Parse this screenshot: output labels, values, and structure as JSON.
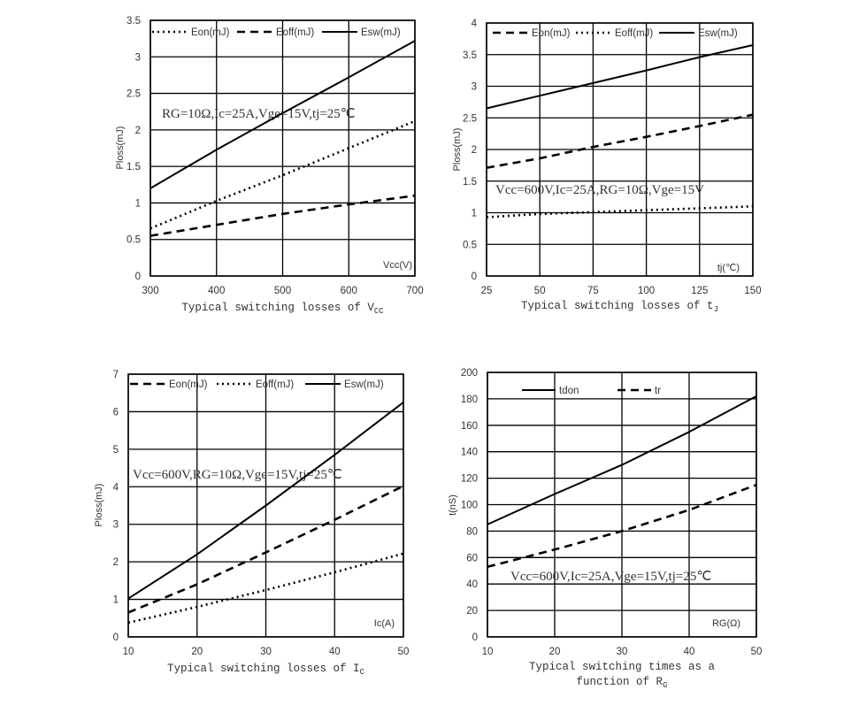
{
  "colors": {
    "line": "#000000",
    "grid": "#000000",
    "text": "#333333"
  },
  "chart_data": [
    {
      "type": "line",
      "caption": "Typical switching losses of V",
      "caption_sub": "CC",
      "xlabel": "Vcc(V)",
      "ylabel": "Ploss(mJ)",
      "xlim": [
        300,
        700
      ],
      "ylim": [
        0,
        3.5
      ],
      "xticks": [
        300,
        400,
        500,
        600,
        700
      ],
      "yticks": [
        0,
        0.5,
        1,
        1.5,
        2,
        2.5,
        3,
        3.5
      ],
      "grid": true,
      "legend": "top",
      "annotation": "RG=10Ω,Ic=25A,Vge=15V,tj=25℃",
      "x": [
        300,
        400,
        500,
        600,
        700
      ],
      "series": [
        {
          "name": "Eon(mJ)",
          "style": "dotted",
          "values": [
            0.65,
            1.03,
            1.38,
            1.75,
            2.12
          ]
        },
        {
          "name": "Eoff(mJ)",
          "style": "dashed",
          "values": [
            0.55,
            0.7,
            0.85,
            0.98,
            1.1
          ]
        },
        {
          "name": "Esw(mJ)",
          "style": "solid",
          "values": [
            1.2,
            1.73,
            2.23,
            2.72,
            3.22
          ]
        }
      ]
    },
    {
      "type": "line",
      "caption": "Typical switching losses of t",
      "caption_sub": "J",
      "xlabel": "tj(℃)",
      "ylabel": "Ploss(mJ)",
      "xlim": [
        25,
        150
      ],
      "ylim": [
        0,
        4
      ],
      "xticks": [
        25,
        50,
        75,
        100,
        125,
        150
      ],
      "yticks": [
        0,
        0.5,
        1,
        1.5,
        2,
        2.5,
        3,
        3.5,
        4
      ],
      "grid": true,
      "legend": "top",
      "annotation": "Vcc=600V,Ic=25A,RG=10Ω,Vge=15V",
      "x": [
        25,
        50,
        75,
        100,
        125,
        150
      ],
      "series": [
        {
          "name": "Eon(mJ)",
          "style": "dashed",
          "values": [
            1.71,
            1.86,
            2.04,
            2.2,
            2.37,
            2.55
          ]
        },
        {
          "name": "Eoff(mJ)",
          "style": "dotted",
          "values": [
            0.93,
            0.98,
            1.01,
            1.04,
            1.07,
            1.1
          ]
        },
        {
          "name": "Esw(mJ)",
          "style": "solid",
          "values": [
            2.65,
            2.85,
            3.05,
            3.25,
            3.46,
            3.65
          ]
        }
      ]
    },
    {
      "type": "line",
      "caption": "Typical switching losses of I",
      "caption_sub": "C",
      "xlabel": "Ic(A)",
      "ylabel": "Ploss(mJ)",
      "xlim": [
        10,
        50
      ],
      "ylim": [
        0,
        7
      ],
      "xticks": [
        10,
        20,
        30,
        40,
        50
      ],
      "yticks": [
        0,
        1,
        2,
        3,
        4,
        5,
        6,
        7
      ],
      "grid": true,
      "legend": "top",
      "annotation": "Vcc=600V,RG=10Ω,Vge=15V,tj=25℃",
      "x": [
        10,
        20,
        30,
        40,
        50
      ],
      "series": [
        {
          "name": "Eon(mJ)",
          "style": "dashed",
          "values": [
            0.65,
            1.4,
            2.25,
            3.12,
            4.02
          ]
        },
        {
          "name": "Eoff(mJ)",
          "style": "dotted",
          "values": [
            0.38,
            0.8,
            1.25,
            1.72,
            2.22
          ]
        },
        {
          "name": "Esw(mJ)",
          "style": "solid",
          "values": [
            1.02,
            2.2,
            3.5,
            4.85,
            6.25
          ]
        }
      ]
    },
    {
      "type": "line",
      "caption": "Typical switching times as a",
      "caption2": "function of R",
      "caption_sub": "G",
      "xlabel": "RG(Ω)",
      "ylabel": "t(nS)",
      "xlim": [
        10,
        50
      ],
      "ylim": [
        0,
        200
      ],
      "xticks": [
        10,
        20,
        30,
        40,
        50
      ],
      "yticks": [
        0,
        20,
        40,
        60,
        80,
        100,
        120,
        140,
        160,
        180,
        200
      ],
      "grid": true,
      "legend": "top",
      "annotation": "Vcc=600V,Ic=25A,Vge=15V,tj=25℃",
      "x": [
        10,
        20,
        30,
        40,
        50
      ],
      "series": [
        {
          "name": "tdon",
          "style": "solid",
          "values": [
            85,
            108,
            130,
            155,
            182
          ]
        },
        {
          "name": "tr",
          "style": "dashed",
          "values": [
            53,
            66,
            80,
            96,
            115
          ]
        }
      ]
    }
  ]
}
